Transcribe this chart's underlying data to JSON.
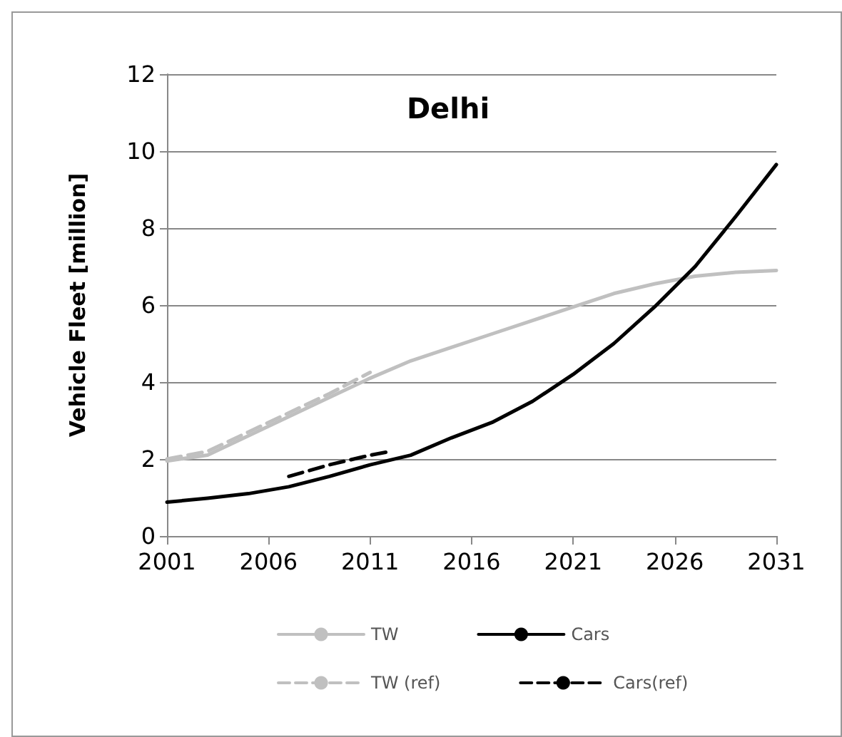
{
  "chart_data": {
    "type": "line",
    "title": "Delhi",
    "ylabel": "Vehicle Fleet [million]",
    "xlim": [
      2001,
      2031
    ],
    "xticks": [
      2001,
      2006,
      2011,
      2016,
      2021,
      2026,
      2031
    ],
    "ylim": [
      0,
      12
    ],
    "yticks": [
      0,
      2,
      4,
      6,
      8,
      10,
      12
    ],
    "grid": "y",
    "legend": "bottom",
    "marker": "none",
    "series": [
      {
        "name": "TW",
        "color": "#c0c0c0",
        "line_style": "solid",
        "x": [
          2001,
          2003,
          2005,
          2007,
          2009,
          2011,
          2013,
          2015,
          2017,
          2019,
          2021,
          2023,
          2025,
          2027,
          2029,
          2031
        ],
        "values": [
          1.95,
          2.1,
          2.6,
          3.1,
          3.6,
          4.1,
          4.55,
          4.9,
          5.25,
          5.6,
          5.95,
          6.3,
          6.55,
          6.75,
          6.85,
          6.9
        ]
      },
      {
        "name": "Cars",
        "color": "#000000",
        "line_style": "solid",
        "x": [
          2001,
          2003,
          2005,
          2007,
          2009,
          2011,
          2013,
          2015,
          2017,
          2019,
          2021,
          2023,
          2025,
          2027,
          2029,
          2031
        ],
        "values": [
          0.88,
          0.98,
          1.1,
          1.28,
          1.55,
          1.85,
          2.1,
          2.55,
          2.95,
          3.5,
          4.2,
          5.0,
          5.95,
          7.0,
          8.3,
          9.65
        ]
      },
      {
        "name": "TW (ref)",
        "color": "#c0c0c0",
        "line_style": "dashed",
        "x": [
          2001,
          2003,
          2005,
          2007,
          2009,
          2011
        ],
        "values": [
          2.0,
          2.2,
          2.7,
          3.2,
          3.7,
          4.25
        ]
      },
      {
        "name": "Cars(ref)",
        "color": "#000000",
        "line_style": "dashed",
        "x": [
          2007,
          2009,
          2011,
          2012
        ],
        "values": [
          1.55,
          1.85,
          2.1,
          2.2
        ]
      }
    ]
  }
}
